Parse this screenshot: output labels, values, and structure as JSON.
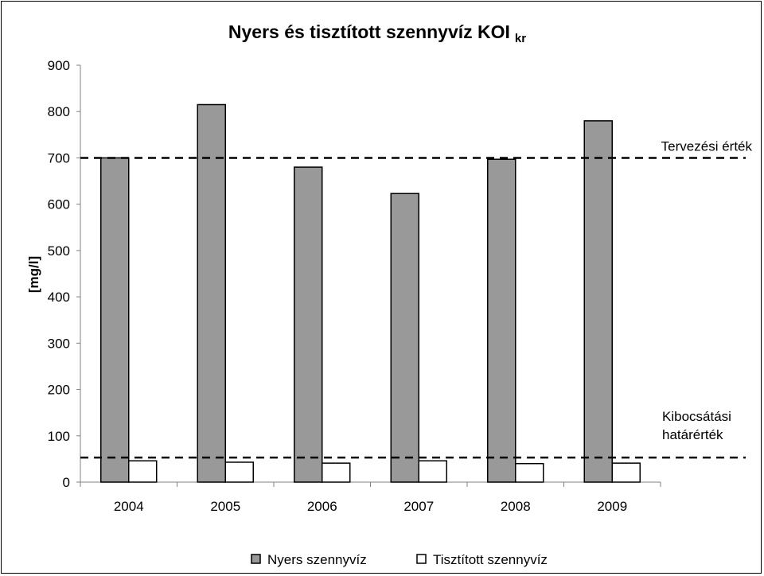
{
  "chart_data": {
    "type": "bar",
    "title": "Nyers és tisztított szennyvíz KOI",
    "title_subscript": "kr",
    "ylabel": "[mg/l]",
    "xlabel": "",
    "ylim": [
      0,
      900
    ],
    "yticks": [
      0,
      100,
      200,
      300,
      400,
      500,
      600,
      700,
      800,
      900
    ],
    "grid": false,
    "legend_position": "bottom",
    "categories": [
      "2004",
      "2005",
      "2006",
      "2007",
      "2008",
      "2009"
    ],
    "series": [
      {
        "name": "Nyers szennyvíz",
        "color": "#999999",
        "values": [
          700,
          815,
          680,
          623,
          697,
          780
        ]
      },
      {
        "name": "Tisztított szennyvíz",
        "color": "#ffffff",
        "values": [
          46,
          43,
          41,
          46,
          40,
          41
        ]
      }
    ],
    "reference_lines": [
      {
        "label": "Tervezési érték",
        "value": 700
      },
      {
        "label_lines": [
          "Kibocsátási",
          "határérték"
        ],
        "value": 53
      }
    ]
  }
}
